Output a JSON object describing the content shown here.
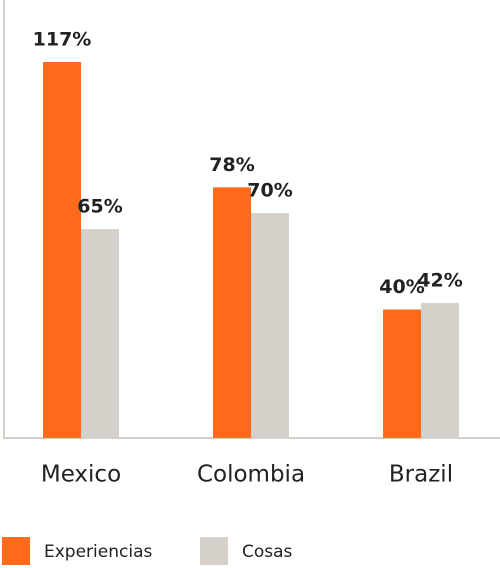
{
  "chart_data": {
    "type": "bar",
    "categories": [
      "Mexico",
      "Colombia",
      "Brazil"
    ],
    "series": [
      {
        "name": "Experiencias",
        "color": "#ff6b1a",
        "values": [
          117,
          78,
          40
        ],
        "value_labels": [
          "117%",
          "78%",
          "40%"
        ]
      },
      {
        "name": "Cosas",
        "color": "#d6d0cb",
        "values": [
          65,
          70,
          42
        ],
        "value_labels": [
          "65%",
          "70%",
          "42%"
        ]
      }
    ]
  }
}
